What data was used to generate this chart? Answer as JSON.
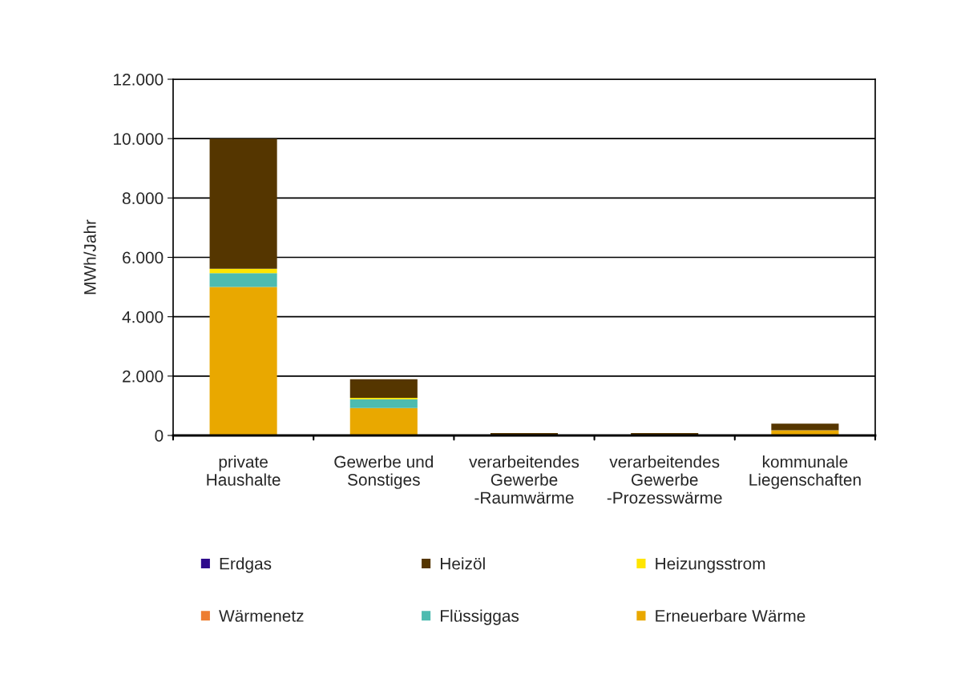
{
  "chart_data": {
    "type": "bar",
    "stacked": true,
    "ylabel": "MWh/Jahr",
    "categories": [
      "private\nHaushalte",
      "Gewerbe und\nSonstiges",
      "verarbeitendes\nGewerbe\n-Raumwärme",
      "verarbeitendes\nGewerbe\n-Prozesswärme",
      "kommunale\nLiegenschaften"
    ],
    "series": [
      {
        "name": "Erneuerbare Wärme",
        "color": "#e9a800",
        "values": [
          5000,
          925,
          0,
          30,
          175
        ]
      },
      {
        "name": "Flüssiggas",
        "color": "#4dbbb0",
        "values": [
          470,
          295,
          30,
          0,
          0
        ]
      },
      {
        "name": "Wärmenetz",
        "color": "#ed7d31",
        "values": [
          0,
          0,
          0,
          0,
          0
        ]
      },
      {
        "name": "Heizungsstrom",
        "color": "#ffe500",
        "values": [
          145,
          45,
          0,
          0,
          0
        ]
      },
      {
        "name": "Heizöl",
        "color": "#553600",
        "values": [
          4385,
          630,
          50,
          50,
          225
        ]
      },
      {
        "name": "Erdgas",
        "color": "#2e0a8c",
        "values": [
          0,
          0,
          0,
          0,
          0
        ]
      }
    ],
    "ylim": [
      0,
      12000
    ],
    "yticks": [
      {
        "value": 0,
        "label": "0"
      },
      {
        "value": 2000,
        "label": "2.000"
      },
      {
        "value": 4000,
        "label": "4.000"
      },
      {
        "value": 6000,
        "label": "6.000"
      },
      {
        "value": 8000,
        "label": "8.000"
      },
      {
        "value": 10000,
        "label": "10.000"
      },
      {
        "value": 12000,
        "label": "12.000"
      }
    ],
    "grid": "y",
    "legend": "bottom"
  }
}
